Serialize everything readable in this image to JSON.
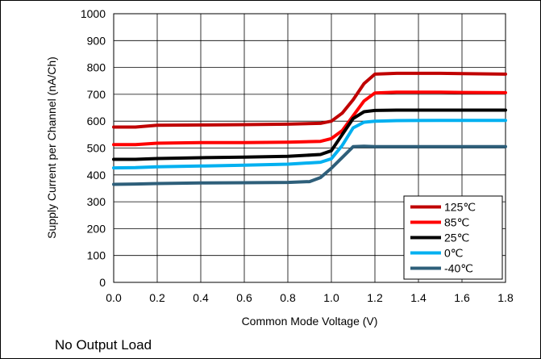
{
  "chart_data": {
    "type": "line",
    "title": "",
    "xlabel": "Common Mode Voltage (V)",
    "ylabel": "Supply Current per Channel (nA/Ch)",
    "xlim": [
      0.0,
      1.8
    ],
    "ylim": [
      0,
      1000
    ],
    "x_ticks": [
      "0.0",
      "0.2",
      "0.4",
      "0.6",
      "0.8",
      "1.0",
      "1.2",
      "1.4",
      "1.6",
      "1.8"
    ],
    "y_ticks": [
      "0",
      "100",
      "200",
      "300",
      "400",
      "500",
      "600",
      "700",
      "800",
      "900",
      "1000"
    ],
    "grid": true,
    "legend_position": "bottom-right",
    "series": [
      {
        "name": "125℃",
        "color": "#c00000",
        "points": [
          [
            0,
            578
          ],
          [
            0.1,
            578
          ],
          [
            0.2,
            585
          ],
          [
            0.4,
            586
          ],
          [
            0.6,
            587
          ],
          [
            0.8,
            589
          ],
          [
            0.95,
            592
          ],
          [
            1.0,
            600
          ],
          [
            1.05,
            630
          ],
          [
            1.1,
            680
          ],
          [
            1.15,
            740
          ],
          [
            1.2,
            775
          ],
          [
            1.3,
            778
          ],
          [
            1.5,
            778
          ],
          [
            1.6,
            777
          ],
          [
            1.8,
            775
          ]
        ]
      },
      {
        "name": "85℃",
        "color": "#ff0000",
        "points": [
          [
            0,
            513
          ],
          [
            0.1,
            513
          ],
          [
            0.2,
            518
          ],
          [
            0.4,
            520
          ],
          [
            0.6,
            520
          ],
          [
            0.8,
            522
          ],
          [
            0.95,
            525
          ],
          [
            1.0,
            535
          ],
          [
            1.05,
            565
          ],
          [
            1.1,
            620
          ],
          [
            1.15,
            675
          ],
          [
            1.2,
            705
          ],
          [
            1.3,
            708
          ],
          [
            1.5,
            708
          ],
          [
            1.6,
            707
          ],
          [
            1.8,
            706
          ]
        ]
      },
      {
        "name": "25℃",
        "color": "#000000",
        "points": [
          [
            0,
            458
          ],
          [
            0.1,
            458
          ],
          [
            0.2,
            461
          ],
          [
            0.4,
            464
          ],
          [
            0.6,
            466
          ],
          [
            0.8,
            469
          ],
          [
            0.95,
            476
          ],
          [
            1.0,
            490
          ],
          [
            1.05,
            550
          ],
          [
            1.1,
            610
          ],
          [
            1.15,
            635
          ],
          [
            1.2,
            640
          ],
          [
            1.3,
            641
          ],
          [
            1.5,
            641
          ],
          [
            1.6,
            641
          ],
          [
            1.8,
            641
          ]
        ]
      },
      {
        "name": "0℃",
        "color": "#00b0f0",
        "points": [
          [
            0,
            426
          ],
          [
            0.1,
            427
          ],
          [
            0.2,
            430
          ],
          [
            0.4,
            433
          ],
          [
            0.6,
            436
          ],
          [
            0.8,
            440
          ],
          [
            0.95,
            447
          ],
          [
            1.0,
            460
          ],
          [
            1.05,
            510
          ],
          [
            1.1,
            575
          ],
          [
            1.15,
            596
          ],
          [
            1.2,
            600
          ],
          [
            1.3,
            602
          ],
          [
            1.5,
            603
          ],
          [
            1.6,
            603
          ],
          [
            1.8,
            603
          ]
        ]
      },
      {
        "name": "-40℃",
        "color": "#2e5f7a",
        "points": [
          [
            0,
            365
          ],
          [
            0.1,
            366
          ],
          [
            0.2,
            368
          ],
          [
            0.4,
            370
          ],
          [
            0.6,
            371
          ],
          [
            0.8,
            372
          ],
          [
            0.9,
            375
          ],
          [
            0.95,
            390
          ],
          [
            1.0,
            425
          ],
          [
            1.05,
            465
          ],
          [
            1.1,
            505
          ],
          [
            1.15,
            507
          ],
          [
            1.2,
            505
          ],
          [
            1.4,
            505
          ],
          [
            1.6,
            505
          ],
          [
            1.8,
            505
          ]
        ]
      }
    ]
  },
  "footnote": "No Output Load"
}
